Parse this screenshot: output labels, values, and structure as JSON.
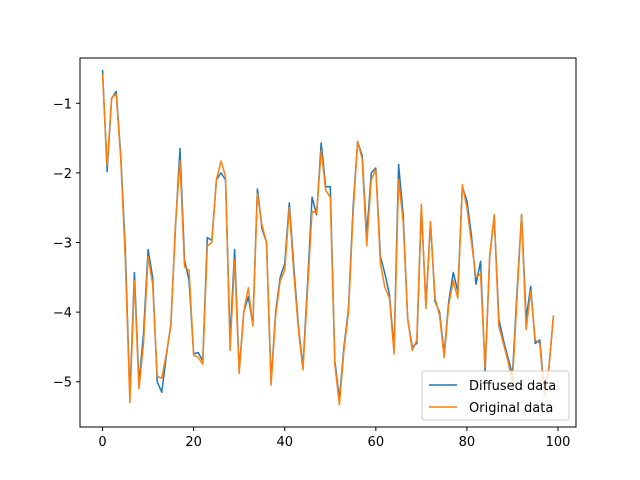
{
  "chart_data": {
    "type": "line",
    "x_ticks": [
      0,
      20,
      40,
      60,
      80,
      100
    ],
    "y_ticks": [
      -5,
      -4,
      -3,
      -2,
      -1
    ],
    "xlim": [
      -4.95,
      103.95
    ],
    "ylim": [
      -5.65,
      -0.35
    ],
    "grid": false,
    "legend_placement": "lower-right",
    "series": [
      {
        "name": "Diffused data",
        "color": "#1f77b4",
        "values": [
          -0.52,
          -1.98,
          -0.93,
          -0.83,
          -1.75,
          -3.1,
          -5.2,
          -3.43,
          -5.03,
          -4.3,
          -3.1,
          -3.5,
          -5.0,
          -5.15,
          -4.63,
          -4.17,
          -2.8,
          -1.65,
          -3.25,
          -3.55,
          -4.6,
          -4.58,
          -4.7,
          -2.93,
          -2.97,
          -2.1,
          -2.0,
          -2.1,
          -4.4,
          -3.1,
          -4.85,
          -4.0,
          -3.78,
          -4.18,
          -2.23,
          -2.8,
          -3.0,
          -5.0,
          -4.0,
          -3.5,
          -3.3,
          -2.43,
          -3.35,
          -4.2,
          -4.78,
          -3.6,
          -2.35,
          -2.6,
          -1.57,
          -2.2,
          -2.2,
          -4.7,
          -5.25,
          -4.5,
          -3.95,
          -2.5,
          -1.55,
          -1.75,
          -2.9,
          -2.0,
          -1.93,
          -3.2,
          -3.45,
          -3.75,
          -4.53,
          -1.88,
          -2.6,
          -4.1,
          -4.5,
          -4.45,
          -2.5,
          -3.9,
          -2.7,
          -3.85,
          -4.0,
          -4.6,
          -3.85,
          -3.43,
          -3.7,
          -2.2,
          -2.4,
          -2.9,
          -3.6,
          -3.27,
          -4.87,
          -3.2,
          -2.63,
          -4.1,
          -4.4,
          -4.65,
          -4.9,
          -3.7,
          -2.6,
          -4.1,
          -3.63,
          -4.45,
          -4.4,
          -5.15,
          -4.8,
          -4.05
        ]
      },
      {
        "name": "Original data",
        "color": "#ff7f0e",
        "values": [
          -0.58,
          -1.9,
          -0.92,
          -0.87,
          -1.8,
          -3.25,
          -5.3,
          -3.55,
          -5.1,
          -4.45,
          -3.2,
          -3.6,
          -4.92,
          -4.95,
          -4.6,
          -4.2,
          -2.75,
          -1.83,
          -3.35,
          -3.4,
          -4.62,
          -4.65,
          -4.75,
          -3.05,
          -3.0,
          -2.1,
          -1.83,
          -2.05,
          -4.55,
          -3.25,
          -4.88,
          -4.0,
          -3.65,
          -4.2,
          -2.3,
          -2.75,
          -3.0,
          -5.05,
          -4.05,
          -3.55,
          -3.4,
          -2.5,
          -3.45,
          -4.25,
          -4.83,
          -3.7,
          -2.55,
          -2.58,
          -1.68,
          -2.25,
          -2.35,
          -4.75,
          -5.33,
          -4.55,
          -4.0,
          -2.6,
          -1.55,
          -1.8,
          -3.05,
          -2.1,
          -1.95,
          -3.3,
          -3.65,
          -3.8,
          -4.6,
          -2.1,
          -2.7,
          -4.1,
          -4.55,
          -4.4,
          -2.45,
          -3.95,
          -2.7,
          -3.8,
          -4.05,
          -4.65,
          -3.9,
          -3.55,
          -3.8,
          -2.17,
          -2.5,
          -3.0,
          -3.5,
          -3.45,
          -4.8,
          -3.2,
          -2.6,
          -4.2,
          -4.45,
          -4.7,
          -5.0,
          -3.8,
          -2.6,
          -4.25,
          -3.7,
          -4.4,
          -4.45,
          -5.2,
          -4.8,
          -4.05
        ]
      }
    ]
  }
}
